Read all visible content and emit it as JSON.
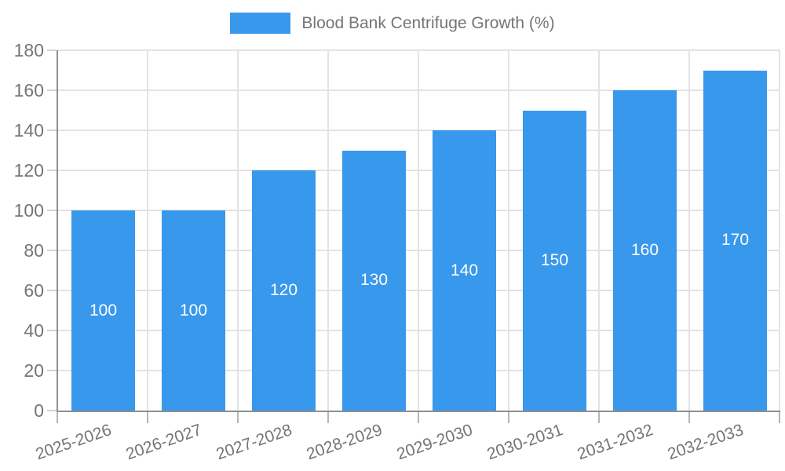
{
  "chart_data": {
    "type": "bar",
    "title": "Blood Bank Centrifuge Growth (%)",
    "categories": [
      "2025-2026",
      "2026-2027",
      "2027-2028",
      "2028-2029",
      "2029-2030",
      "2030-2031",
      "2031-2032",
      "2032-2033"
    ],
    "values": [
      100,
      100,
      120,
      130,
      140,
      150,
      160,
      170
    ],
    "data_labels": [
      "100",
      "100",
      "120",
      "130",
      "140",
      "150",
      "160",
      "170"
    ],
    "data_label_position": "inside-center",
    "xlabel": "",
    "ylabel": "",
    "ylim": [
      0,
      180
    ],
    "ytick_step": 20,
    "ytick_labels": [
      "0",
      "20",
      "40",
      "60",
      "80",
      "100",
      "120",
      "140",
      "160",
      "180"
    ],
    "grid": true,
    "legend_position": "top-center",
    "colors": {
      "bar": "#3898ec",
      "bar_label_text": "#ffffff",
      "axis_text": "#757575",
      "grid_line": "#e3e3e3",
      "axis_line": "#8f8f8f",
      "background": "#ffffff"
    }
  }
}
